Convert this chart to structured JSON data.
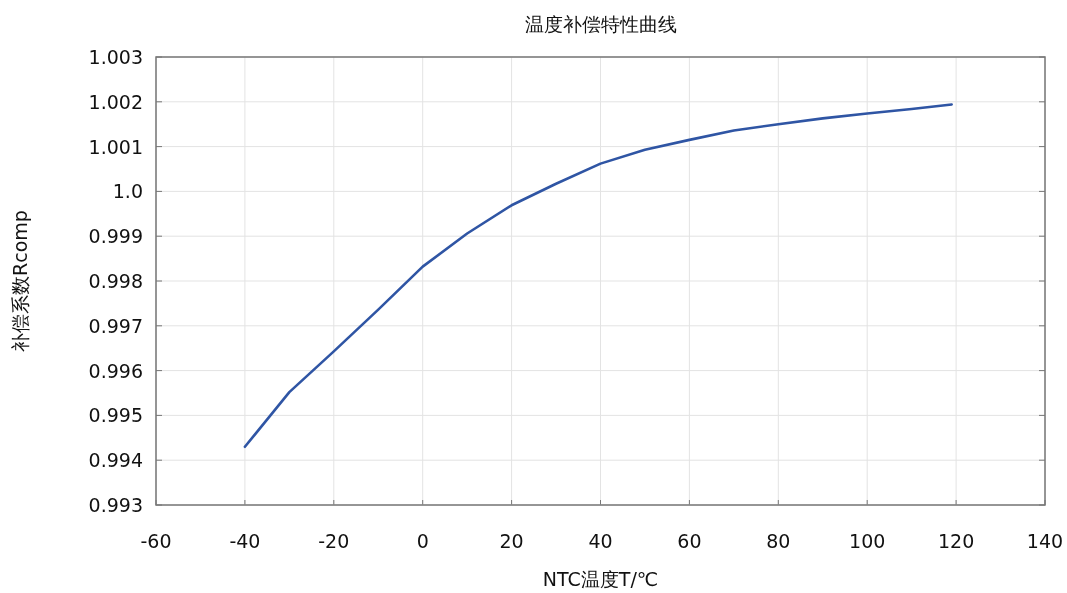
{
  "chart_data": {
    "type": "line",
    "title": "温度补偿特性曲线",
    "xlabel": "NTC温度T/℃",
    "ylabel": "补偿系数Rcomp",
    "x": [
      -40,
      -30,
      -20,
      -10,
      0,
      10,
      20,
      30,
      40,
      50,
      60,
      70,
      80,
      90,
      100,
      110,
      119
    ],
    "series": [
      {
        "color": "#2f55a4",
        "values": [
          0.9943,
          0.99552,
          0.99643,
          0.99736,
          0.99832,
          0.99906,
          0.99969,
          1.00017,
          1.00062,
          1.00093,
          1.00115,
          1.00136,
          1.0015,
          1.00163,
          1.00174,
          1.00184,
          1.00194
        ]
      }
    ],
    "xlim": [
      -60,
      140
    ],
    "xticks": [
      -60,
      -40,
      -20,
      0,
      20,
      40,
      60,
      80,
      100,
      120,
      140
    ],
    "ylim": [
      0.993,
      1.003
    ],
    "yticks": [
      0.993,
      0.994,
      0.995,
      0.996,
      0.997,
      0.998,
      0.999,
      {
        "value": 1,
        "label": "1.0"
      },
      1.001,
      1.002,
      1.003
    ],
    "grid": true,
    "marker": "none",
    "line_style": "solid"
  }
}
